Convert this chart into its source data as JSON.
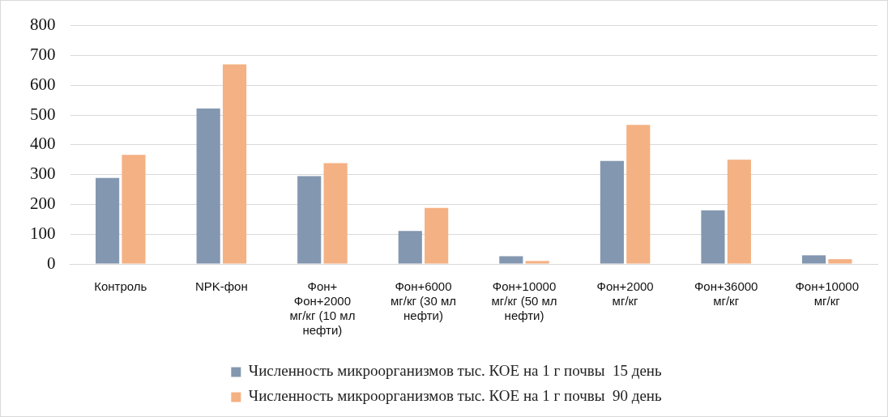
{
  "chart_data": {
    "type": "bar",
    "categories": [
      "Контроль",
      "NPK-фон",
      "Фон+ Фон+2000 мг/кг (10 мл нефти)",
      "Фон+6000 мг/кг (30 мл нефти)",
      "Фон+10000 мг/кг (50 мл нефти)",
      "Фон+2000 мг/кг",
      "Фон+36000 мг/кг",
      "Фон+10000 мг/кг"
    ],
    "series": [
      {
        "name": "Численность микроорганизмов тыс. КОЕ на 1 г почвы  15 день",
        "color": "#8497b0",
        "values": [
          289,
          522,
          295,
          111,
          26,
          346,
          180,
          29
        ]
      },
      {
        "name": "Численность микроорганизмов тыс. КОЕ на 1 г почвы  90 день",
        "color": "#f4b183",
        "values": [
          366,
          670,
          338,
          188,
          10,
          467,
          350,
          16
        ]
      }
    ],
    "ylim": [
      0,
      800
    ],
    "yticks": [
      0,
      100,
      200,
      300,
      400,
      500,
      600,
      700,
      800
    ],
    "grid": "y",
    "legend": "bottom"
  }
}
